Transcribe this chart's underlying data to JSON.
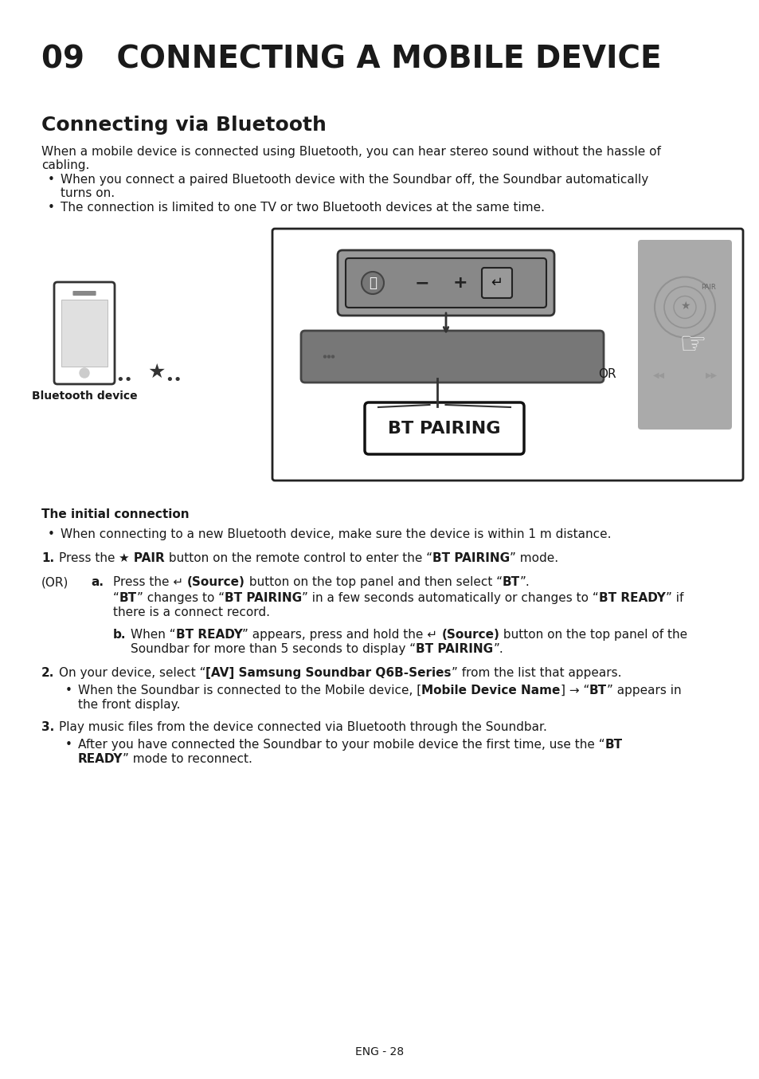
{
  "title": "09   CONNECTING A MOBILE DEVICE",
  "section_title": "Connecting via Bluetooth",
  "intro_para": "When a mobile device is connected using Bluetooth, you can hear stereo sound without the hassle of cabling.",
  "bullet1": "When you connect a paired Bluetooth device with the Soundbar off, the Soundbar automatically turns on.",
  "bullet2": "The connection is limited to one TV or two Bluetooth devices at the same time.",
  "bt_device_label": "Bluetooth device",
  "ic_title": "The initial connection",
  "ic_bullet": "When connecting to a new Bluetooth device, make sure the device is within 1 m distance.",
  "step1_pre": "Press the ",
  "step1_bt": "★ PAIR",
  "step1_mid": " button on the remote control to enter the “",
  "step1_bold": "BT PAIRING",
  "step1_end": "” mode.",
  "or_label": "(OR)",
  "step_a_label": "a.",
  "step_a_pre": "Press the ↵ (Source) button on the top panel and then select “",
  "step_a_bold": "BT",
  "step_a_end": "”.",
  "step_a2": "“BT” changes to “BT PAIRING” in a few seconds automatically or changes to “BT READY” if",
  "step_a3": "there is a connect record.",
  "step_b_label": "b.",
  "step_b1_pre": "When “",
  "step_b1_bold": "BT READY",
  "step_b1_mid": "” appears, press and hold the ↵ (Source) button on the top panel of the",
  "step_b2": "Soundbar for more than 5 seconds to display “BT PAIRING”.",
  "step2_pre": "On your device, select “",
  "step2_bold": "[AV] Samsung Soundbar Q6B-Series",
  "step2_end": "” from the list that appears.",
  "step2_bullet1": "When the Soundbar is connected to the Mobile device, [Mobile Device Name] → “BT” appears in",
  "step2_bullet2": "the front display.",
  "step3_text": "Play music files from the device connected via Bluetooth through the Soundbar.",
  "step3_bullet1_pre": "After you have connected the Soundbar to your mobile device the first time, use the “",
  "step3_bullet1_bold": "BT",
  "step3_bullet2_bold": "READY",
  "step3_bullet2_end": "” mode to reconnect.",
  "footer": "ENG - 28",
  "bg_color": "#ffffff",
  "text_color": "#1a1a1a",
  "gray_text": "#555555"
}
